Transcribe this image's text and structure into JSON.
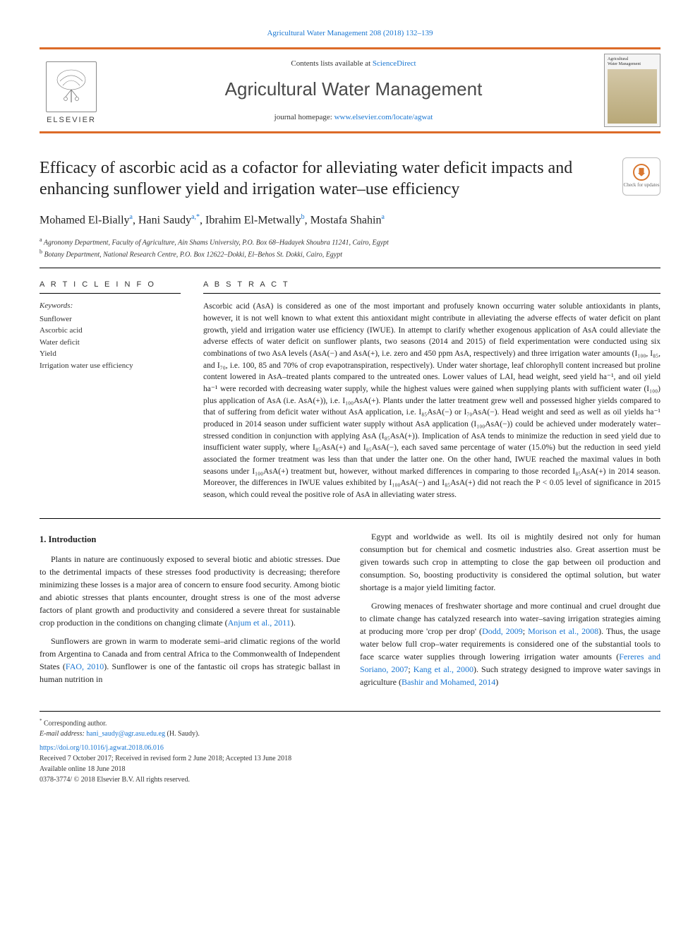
{
  "top_citation": "Agricultural Water Management 208 (2018) 132–139",
  "header": {
    "contents_prefix": "Contents lists available at ",
    "contents_link": "ScienceDirect",
    "journal_name": "Agricultural Water Management",
    "homepage_prefix": "journal homepage: ",
    "homepage_link": "www.elsevier.com/locate/agwat",
    "elsevier_label": "ELSEVIER",
    "cover_label1": "Agricultural",
    "cover_label2": "Water Management"
  },
  "title": "Efficacy of ascorbic acid as a cofactor for alleviating water deficit impacts and enhancing sunflower yield and irrigation water–use efficiency",
  "updates_label": "Check for updates",
  "authors_html": "Mohamed El-Bially<sup class='sup'>a</sup>, Hani Saudy<sup class='sup'>a,*</sup>, Ibrahim El-Metwally<sup class='sup'>b</sup>, Mostafa Shahin<sup class='sup'>a</sup>",
  "affiliations": [
    {
      "marker": "a",
      "text": "Agronomy Department, Faculty of Agriculture, Ain Shams University, P.O. Box 68–Hadayek Shoubra 11241, Cairo, Egypt"
    },
    {
      "marker": "b",
      "text": "Botany Department, National Research Centre, P.O. Box 12622–Dokki, El–Behos St. Dokki, Cairo, Egypt"
    }
  ],
  "info": {
    "label": "A R T I C L E  I N F O",
    "keywords_label": "Keywords:",
    "keywords": [
      "Sunflower",
      "Ascorbic acid",
      "Water deficit",
      "Yield",
      "Irrigation water use efficiency"
    ]
  },
  "abstract": {
    "label": "A B S T R A C T",
    "text": "Ascorbic acid (AsA) is considered as one of the most important and profusely known occurring water soluble antioxidants in plants, however, it is not well known to what extent this antioxidant might contribute in alleviating the adverse effects of water deficit on plant growth, yield and irrigation water use efficiency (IWUE). In attempt to clarify whether exogenous application of AsA could alleviate the adverse effects of water deficit on sunflower plants, two seasons (2014 and 2015) of field experimentation were conducted using six combinations of two AsA levels (AsA(−) and AsA(+), i.e. zero and 450 ppm AsA, respectively) and three irrigation water amounts (I₁₀₀, I₈₅, and I₇₀, i.e. 100, 85 and 70% of crop evapotranspiration, respectively). Under water shortage, leaf chlorophyll content increased but proline content lowered in AsA–treated plants compared to the untreated ones. Lower values of LAI, head weight, seed yield ha⁻¹, and oil yield ha⁻¹ were recorded with decreasing water supply, while the highest values were gained when supplying plants with sufficient water (I₁₀₀) plus application of AsA (i.e. AsA(+)), i.e. I₁₀₀AsA(+). Plants under the latter treatment grew well and possessed higher yields compared to that of suffering from deficit water without AsA application, i.e. I₈₅AsA(−) or I₇₀AsA(−). Head weight and seed as well as oil yields ha⁻¹ produced in 2014 season under sufficient water supply without AsA application (I₁₀₀AsA(−)) could be achieved under moderately water–stressed condition in conjunction with applying AsA (I₈₅AsA(+)). Implication of AsA tends to minimize the reduction in seed yield due to insufficient water supply, where I₈₅AsA(+) and I₈₅AsA(−), each saved same percentage of water (15.0%) but the reduction in seed yield associated the former treatment was less than that under the latter one. On the other hand, IWUE reached the maximal values in both seasons under I₁₀₀AsA(+) treatment but, however, without marked differences in comparing to those recorded I₈₅AsA(+) in 2014 season. Moreover, the differences in IWUE values exhibited by I₁₀₀AsA(−) and I₈₅AsA(+) did not reach the P < 0.05 level of significance in 2015 season, which could reveal the positive role of AsA in alleviating water stress."
  },
  "intro": {
    "heading": "1. Introduction",
    "p1": "Plants in nature are continuously exposed to several biotic and abiotic stresses. Due to the detrimental impacts of these stresses food productivity is decreasing; therefore minimizing these losses is a major area of concern to ensure food security. Among biotic and abiotic stresses that plants encounter, drought stress is one of the most adverse factors of plant growth and productivity and considered a severe threat for sustainable crop production in the conditions on changing climate (",
    "p1_ref": "Anjum et al., 2011",
    "p1_tail": ").",
    "p2": "Sunflowers are grown in warm to moderate semi–arid climatic regions of the world from Argentina to Canada and from central Africa to the Commonwealth of Independent States (",
    "p2_ref": "FAO, 2010",
    "p2_tail": "). Sunflower is one of the fantastic oil crops has strategic ballast in human nutrition in",
    "p3": "Egypt and worldwide as well. Its oil is mightily desired not only for human consumption but for chemical and cosmetic industries also. Great assertion must be given towards such crop in attempting to close the gap between oil production and consumption. So, boosting productivity is considered the optimal solution, but water shortage is a major yield limiting factor.",
    "p4a": "Growing menaces of freshwater shortage and more continual and cruel drought due to climate change has catalyzed research into water–saving irrigation strategies aiming at producing more 'crop per drop' (",
    "p4_ref1": "Dodd, 2009",
    "p4_mid1": "; ",
    "p4_ref2": "Morison et al., 2008",
    "p4_mid2": "). Thus, the usage water below full crop–water requirements is considered one of the substantial tools to face scarce water supplies through lowering irrigation water amounts (",
    "p4_ref3": "Fereres and Soriano, 2007",
    "p4_mid3": "; ",
    "p4_ref4": "Kang et al., 2000",
    "p4_mid4": "). Such strategy designed to improve water savings in agriculture (",
    "p4_ref5": "Bashir and Mohamed, 2014",
    "p4_tail": ")"
  },
  "footnotes": {
    "corr_marker": "*",
    "corr_text": "Corresponding author.",
    "email_label": "E-mail address: ",
    "email": "hani_saudy@agr.asu.edu.eg",
    "email_paren": " (H. Saudy).",
    "doi": "https://doi.org/10.1016/j.agwat.2018.06.016",
    "history": "Received 7 October 2017; Received in revised form 2 June 2018; Accepted 13 June 2018",
    "available": "Available online 18 June 2018",
    "copyright": "0378-3774/ © 2018 Elsevier B.V. All rights reserved."
  },
  "colors": {
    "accent": "#dc6b28",
    "link": "#1976d2",
    "text": "#222222",
    "muted": "#4a4a4a"
  }
}
